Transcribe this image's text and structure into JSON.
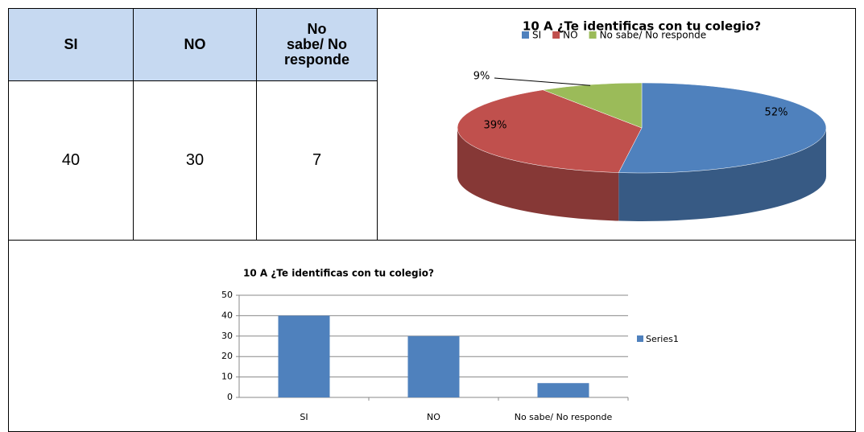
{
  "table": {
    "headers": [
      "SI",
      "NO",
      "No\nsabe/ No\nresponde"
    ],
    "rows": [
      [
        40,
        30,
        7
      ]
    ]
  },
  "chart_data": [
    {
      "type": "pie",
      "title": "10 A ¿Te identificas con tu colegio?",
      "categories": [
        "SI",
        "NO",
        "No sabe/ No responde"
      ],
      "values": [
        52,
        39,
        9
      ],
      "value_labels": [
        "52%",
        "39%",
        "9%"
      ],
      "colors": [
        "#4f81bd",
        "#c0504d",
        "#9bbb59"
      ],
      "legend": "top"
    },
    {
      "type": "bar",
      "title": "10 A ¿Te identificas con tu colegio?",
      "categories": [
        "SI",
        "NO",
        "No sabe/ No responde"
      ],
      "series": [
        {
          "name": "Series1",
          "color": "#4f81bd",
          "values": [
            40,
            30,
            7
          ]
        }
      ],
      "ylim": [
        0,
        50
      ],
      "yticks": [
        0,
        10,
        20,
        30,
        40,
        50
      ],
      "grid": true,
      "legend": "right"
    }
  ]
}
